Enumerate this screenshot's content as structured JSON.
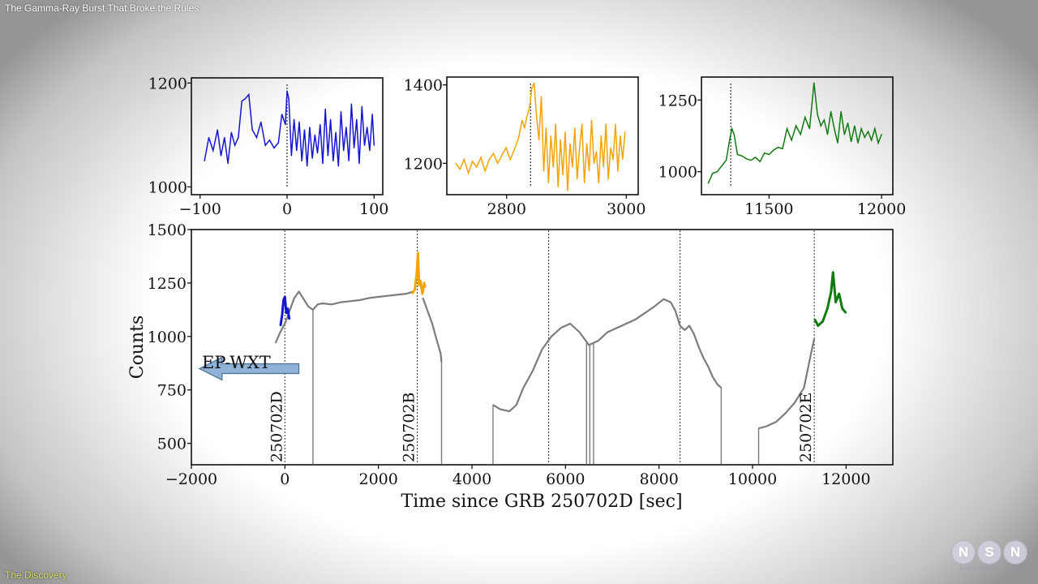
{
  "video": {
    "title": "The Gamma-Ray Burst That Broke the Rules",
    "chapter": "The Discovery"
  },
  "logo": {
    "letters": [
      "N",
      "S",
      "N"
    ],
    "caption": "NASA SPACE NEWS"
  },
  "colors": {
    "blue": "#1414d2",
    "orange": "#f5a300",
    "green": "#117a11",
    "gray": "#7c7c7c",
    "arrow": "#8fb3d6"
  },
  "chart_data": [
    {
      "id": "inset1",
      "type": "line",
      "xlim": [
        -110,
        110
      ],
      "ylim": [
        985,
        1210
      ],
      "xticks": [
        -100,
        0,
        100
      ],
      "xtick_labels": [
        "−100",
        "0",
        "100"
      ],
      "yticks": [
        1000,
        1200
      ],
      "ytick_labels": [
        "1000",
        "1200"
      ],
      "marker_x": 0,
      "color": "blue",
      "series": {
        "name": "250702D",
        "x": [
          -95,
          -90,
          -85,
          -80,
          -76,
          -72,
          -68,
          -64,
          -60,
          -56,
          -52,
          -48,
          -44,
          -40,
          -35,
          -30,
          -25,
          -20,
          -15,
          -10,
          -6,
          -2,
          0,
          2,
          5,
          8,
          11,
          14,
          17,
          20,
          23,
          26,
          29,
          32,
          35,
          38,
          41,
          44,
          47,
          50,
          53,
          56,
          59,
          62,
          65,
          68,
          71,
          74,
          77,
          80,
          83,
          86,
          89,
          92,
          95,
          98,
          100
        ],
        "y": [
          1050,
          1095,
          1070,
          1110,
          1060,
          1095,
          1045,
          1105,
          1080,
          1095,
          1165,
          1170,
          1178,
          1110,
          1095,
          1125,
          1080,
          1090,
          1075,
          1085,
          1140,
          1120,
          1185,
          1170,
          1060,
          1130,
          1070,
          1125,
          1050,
          1110,
          1040,
          1115,
          1055,
          1100,
          1065,
          1120,
          1045,
          1150,
          1060,
          1130,
          1050,
          1105,
          1040,
          1145,
          1070,
          1115,
          1050,
          1160,
          1075,
          1130,
          1045,
          1155,
          1080,
          1115,
          1070,
          1140,
          1080
        ]
      }
    },
    {
      "id": "inset2",
      "type": "line",
      "xlim": [
        2700,
        3020
      ],
      "ylim": [
        1120,
        1420
      ],
      "xticks": [
        2800,
        3000
      ],
      "xtick_labels": [
        "2800",
        "3000"
      ],
      "yticks": [
        1200,
        1400
      ],
      "ytick_labels": [
        "1200",
        "1400"
      ],
      "marker_x": 2840,
      "color": "orange",
      "series": {
        "name": "250702B",
        "x": [
          2715,
          2722,
          2729,
          2736,
          2743,
          2750,
          2757,
          2764,
          2771,
          2778,
          2785,
          2792,
          2799,
          2806,
          2813,
          2820,
          2826,
          2830,
          2834,
          2838,
          2842,
          2846,
          2850,
          2854,
          2858,
          2862,
          2866,
          2870,
          2874,
          2878,
          2882,
          2886,
          2890,
          2894,
          2898,
          2902,
          2906,
          2910,
          2914,
          2918,
          2922,
          2926,
          2930,
          2934,
          2938,
          2942,
          2946,
          2950,
          2954,
          2958,
          2962,
          2966,
          2970,
          2974,
          2978,
          2982,
          2986,
          2990,
          2994,
          2998
        ],
        "y": [
          1200,
          1185,
          1210,
          1175,
          1205,
          1190,
          1215,
          1180,
          1210,
          1225,
          1200,
          1220,
          1240,
          1210,
          1235,
          1265,
          1310,
          1290,
          1320,
          1340,
          1390,
          1405,
          1320,
          1260,
          1370,
          1180,
          1290,
          1150,
          1270,
          1190,
          1300,
          1140,
          1260,
          1170,
          1280,
          1130,
          1250,
          1190,
          1290,
          1160,
          1240,
          1300,
          1150,
          1250,
          1180,
          1310,
          1200,
          1230,
          1150,
          1270,
          1190,
          1300,
          1160,
          1240,
          1210,
          1300,
          1180,
          1270,
          1210,
          1280
        ]
      }
    },
    {
      "id": "inset3",
      "type": "line",
      "xlim": [
        11200,
        12050
      ],
      "ylim": [
        920,
        1330
      ],
      "xticks": [
        11500,
        12000
      ],
      "xtick_labels": [
        "11500",
        "12000"
      ],
      "yticks": [
        1000,
        1250
      ],
      "ytick_labels": [
        "1000",
        "1250"
      ],
      "marker_x": 11330,
      "color": "green",
      "series": {
        "name": "250702E",
        "x": [
          11230,
          11250,
          11270,
          11290,
          11310,
          11325,
          11335,
          11345,
          11360,
          11380,
          11400,
          11420,
          11440,
          11460,
          11480,
          11500,
          11520,
          11540,
          11560,
          11580,
          11600,
          11620,
          11640,
          11660,
          11680,
          11700,
          11715,
          11730,
          11745,
          11760,
          11775,
          11790,
          11805,
          11820,
          11835,
          11850,
          11865,
          11880,
          11895,
          11910,
          11925,
          11940,
          11955,
          11970,
          11985,
          12000
        ],
        "y": [
          960,
          995,
          1000,
          1020,
          1040,
          1110,
          1150,
          1130,
          1060,
          1055,
          1045,
          1040,
          1050,
          1035,
          1065,
          1060,
          1075,
          1085,
          1080,
          1150,
          1110,
          1160,
          1130,
          1190,
          1150,
          1310,
          1200,
          1160,
          1180,
          1130,
          1210,
          1150,
          1100,
          1210,
          1130,
          1170,
          1105,
          1160,
          1100,
          1150,
          1120,
          1140,
          1110,
          1150,
          1100,
          1130
        ]
      }
    },
    {
      "id": "main",
      "type": "line",
      "xlabel": "Time since GRB 250702D [sec]",
      "ylabel": "Counts",
      "xlim": [
        -2000,
        13000
      ],
      "ylim": [
        400,
        1500
      ],
      "xticks": [
        -2000,
        0,
        2000,
        4000,
        6000,
        8000,
        10000,
        12000
      ],
      "xtick_labels": [
        "−2000",
        "0",
        "2000",
        "4000",
        "6000",
        "8000",
        "10000",
        "12000"
      ],
      "yticks": [
        500,
        750,
        1000,
        1250,
        1500
      ],
      "ytick_labels": [
        "500",
        "750",
        "1000",
        "1250",
        "1500"
      ],
      "vlines": [
        0,
        2830,
        5640,
        8450,
        11320
      ],
      "event_labels": [
        {
          "x": 0,
          "text": "250702D"
        },
        {
          "x": 2830,
          "text": "250702B"
        },
        {
          "x": 11320,
          "text": "250702E"
        }
      ],
      "arrow_label": "EP-WXT",
      "arrow_x_range": [
        -1900,
        300
      ],
      "arrow_y": 800,
      "series": [
        {
          "name": "gray-1",
          "color": "gray",
          "x": [
            -200,
            -100,
            0,
            100,
            200,
            300,
            400,
            500,
            600,
            700,
            800,
            1000,
            1200,
            1400,
            1600,
            1800,
            2000,
            2200,
            2400,
            2600,
            2750
          ],
          "y": [
            970,
            1020,
            1060,
            1120,
            1180,
            1210,
            1175,
            1140,
            1125,
            1150,
            1155,
            1150,
            1160,
            1165,
            1170,
            1180,
            1185,
            1190,
            1195,
            1200,
            1210
          ]
        },
        {
          "name": "gray-2",
          "color": "gray",
          "x": [
            2950,
            3050,
            3150,
            3250,
            3330,
            3350
          ],
          "y": [
            1180,
            1120,
            1060,
            980,
            920,
            880
          ]
        },
        {
          "name": "gray-3",
          "color": "gray",
          "x": [
            4450,
            4600,
            4800,
            4950,
            5100,
            5300,
            5500,
            5700,
            5900,
            6100,
            6300,
            6500,
            6700,
            6900,
            7100,
            7300,
            7500,
            7700,
            7900,
            8100,
            8250,
            8350,
            8450,
            8550,
            8650,
            8750,
            8850,
            8950,
            9050,
            9150,
            9250,
            9330
          ],
          "y": [
            680,
            660,
            650,
            680,
            760,
            840,
            940,
            1000,
            1040,
            1060,
            1020,
            960,
            980,
            1020,
            1040,
            1060,
            1080,
            1110,
            1140,
            1175,
            1160,
            1120,
            1050,
            1030,
            1050,
            1010,
            950,
            900,
            860,
            810,
            775,
            760
          ]
        },
        {
          "name": "gray-4",
          "color": "gray",
          "x": [
            10130,
            10300,
            10500,
            10700,
            10900,
            11100,
            11250,
            11320
          ],
          "y": [
            570,
            580,
            600,
            640,
            690,
            760,
            920,
            990
          ]
        },
        {
          "name": "blue",
          "color": "blue",
          "x": [
            -95,
            -60,
            -30,
            0,
            30,
            60,
            95
          ],
          "y": [
            1050,
            1100,
            1170,
            1185,
            1110,
            1130,
            1080
          ]
        },
        {
          "name": "orange",
          "color": "orange",
          "x": [
            2720,
            2780,
            2820,
            2845,
            2870,
            2900,
            2940,
            2980,
            3000
          ],
          "y": [
            1200,
            1220,
            1300,
            1390,
            1240,
            1260,
            1200,
            1250,
            1230
          ]
        },
        {
          "name": "green",
          "color": "green",
          "x": [
            11330,
            11400,
            11500,
            11600,
            11680,
            11720,
            11780,
            11850,
            11920,
            12000
          ],
          "y": [
            1080,
            1050,
            1070,
            1130,
            1210,
            1300,
            1160,
            1200,
            1130,
            1110
          ]
        }
      ],
      "drop_lines": [
        600,
        3350,
        4450,
        6450,
        6520,
        6600,
        9330,
        10130
      ]
    }
  ]
}
